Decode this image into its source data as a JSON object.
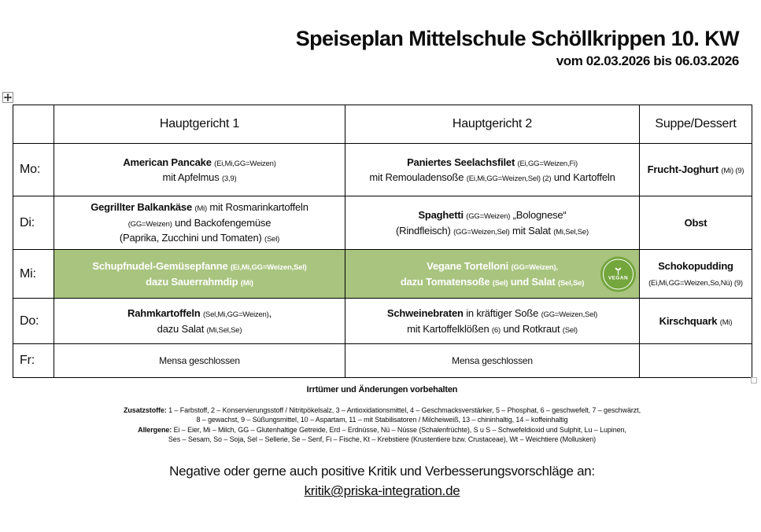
{
  "page": {
    "title": "Speiseplan Mittelschule Schöllkrippen 10. KW",
    "subtitle": "vom 02.03.2026 bis 06.03.2026"
  },
  "colors": {
    "highlight_green": "#a9c47f",
    "badge_green": "#74a63e",
    "border_black": "#000000"
  },
  "table": {
    "headers": [
      "",
      "Hauptgericht 1",
      "Hauptgericht 2",
      "Suppe/Dessert"
    ],
    "rows": [
      {
        "day": "Mo:",
        "cells": [
          {
            "hl": false,
            "lines": [
              [
                {
                  "t": "American Pancake ",
                  "s": "b"
                },
                {
                  "t": "(Ei,Mi,GG=Weizen)",
                  "s": "s"
                }
              ],
              [
                {
                  "t": "mit Apfelmus ",
                  "s": "r"
                },
                {
                  "t": "(3,9)",
                  "s": "s"
                }
              ]
            ]
          },
          {
            "hl": false,
            "lines": [
              [
                {
                  "t": "Paniertes Seelachsfilet ",
                  "s": "b"
                },
                {
                  "t": "(Ei,GG=Weizen,Fi)",
                  "s": "s"
                }
              ],
              [
                {
                  "t": "mit Remouladensoße ",
                  "s": "r"
                },
                {
                  "t": "(Ei,Mi,GG=Weizen,Sel) (2)",
                  "s": "s"
                },
                {
                  "t": " und Kartoffeln",
                  "s": "r"
                }
              ]
            ]
          },
          {
            "hl": false,
            "lines": [
              [
                {
                  "t": "Frucht-Joghurt ",
                  "s": "b"
                },
                {
                  "t": "(Mi) (9)",
                  "s": "s"
                }
              ]
            ]
          }
        ]
      },
      {
        "day": "Di:",
        "cells": [
          {
            "hl": false,
            "lines": [
              [
                {
                  "t": "Gegrillter Balkankäse ",
                  "s": "b"
                },
                {
                  "t": "(Mi)",
                  "s": "s"
                },
                {
                  "t": " mit Rosmarinkartoffeln",
                  "s": "r"
                }
              ],
              [
                {
                  "t": "(GG=Weizen)",
                  "s": "s"
                },
                {
                  "t": " und Backofengemüse",
                  "s": "r"
                }
              ],
              [
                {
                  "t": "(Paprika, Zucchini und Tomaten) ",
                  "s": "r"
                },
                {
                  "t": "(Sel)",
                  "s": "s"
                }
              ]
            ]
          },
          {
            "hl": false,
            "lines": [
              [
                {
                  "t": "Spaghetti ",
                  "s": "b"
                },
                {
                  "t": "(GG=Weizen)",
                  "s": "s"
                },
                {
                  "t": " „Bolognese“",
                  "s": "r"
                }
              ],
              [
                {
                  "t": "(Rindfleisch) ",
                  "s": "r"
                },
                {
                  "t": "(GG=Weizen,Sel)",
                  "s": "s"
                },
                {
                  "t": " mit Salat ",
                  "s": "r"
                },
                {
                  "t": "(Mi,Sel,Se)",
                  "s": "s"
                }
              ]
            ]
          },
          {
            "hl": false,
            "lines": [
              [
                {
                  "t": "Obst",
                  "s": "b"
                }
              ]
            ]
          }
        ]
      },
      {
        "day": "Mi:",
        "cells": [
          {
            "hl": true,
            "lines": [
              [
                {
                  "t": "Schupfnudel-Gemüsepfanne ",
                  "s": "b"
                },
                {
                  "t": "(Ei,Mi,GG=Weizen,Sel)",
                  "s": "s"
                }
              ],
              [
                {
                  "t": "dazu Sauerrahmdip ",
                  "s": "b"
                },
                {
                  "t": "(Mi)",
                  "s": "s"
                }
              ]
            ]
          },
          {
            "hl": true,
            "badge": "vegan",
            "lines": [
              [
                {
                  "t": "Vegane Tortelloni ",
                  "s": "b"
                },
                {
                  "t": "(GG=Weizen),",
                  "s": "s"
                }
              ],
              [
                {
                  "t": "dazu Tomatensoße ",
                  "s": "b"
                },
                {
                  "t": "(Sel)",
                  "s": "s"
                },
                {
                  "t": " und Salat ",
                  "s": "b"
                },
                {
                  "t": "(Sel,Se)",
                  "s": "s"
                }
              ]
            ]
          },
          {
            "hl": false,
            "lines": [
              [
                {
                  "t": "Schokopudding",
                  "s": "b"
                }
              ],
              [
                {
                  "t": "(Ei,Mi,GG=Weizen,So,Nü) (9)",
                  "s": "s"
                }
              ]
            ]
          }
        ]
      },
      {
        "day": "Do:",
        "cells": [
          {
            "hl": false,
            "lines": [
              [
                {
                  "t": "Rahmkartoffeln ",
                  "s": "b"
                },
                {
                  "t": "(Sel,Mi,GG=Weizen)",
                  "s": "s"
                },
                {
                  "t": ",",
                  "s": "r"
                }
              ],
              [
                {
                  "t": "dazu Salat ",
                  "s": "r"
                },
                {
                  "t": "(Mi,Sel,Se)",
                  "s": "s"
                }
              ]
            ]
          },
          {
            "hl": false,
            "lines": [
              [
                {
                  "t": "Schweinebraten",
                  "s": "b"
                },
                {
                  "t": " in kräftiger Soße ",
                  "s": "r"
                },
                {
                  "t": "(GG=Weizen,Sel)",
                  "s": "s"
                }
              ],
              [
                {
                  "t": "mit Kartoffelklößen ",
                  "s": "r"
                },
                {
                  "t": "(6)",
                  "s": "s"
                },
                {
                  "t": " und Rotkraut ",
                  "s": "r"
                },
                {
                  "t": "(Sel)",
                  "s": "s"
                }
              ]
            ]
          },
          {
            "hl": false,
            "lines": [
              [
                {
                  "t": "Kirschquark ",
                  "s": "b"
                },
                {
                  "t": "(Mi)",
                  "s": "s"
                }
              ]
            ]
          }
        ]
      },
      {
        "day": "Fr:",
        "cells": [
          {
            "hl": false,
            "lines": [
              [
                {
                  "t": "Mensa geschlossen",
                  "s": "r"
                }
              ]
            ]
          },
          {
            "hl": false,
            "lines": [
              [
                {
                  "t": "Mensa geschlossen",
                  "s": "r"
                }
              ]
            ]
          },
          {
            "hl": false,
            "lines": []
          }
        ]
      }
    ]
  },
  "badge": {
    "label": "VEGAN"
  },
  "footer": {
    "disclaimer": "Irrtümer und Änderungen vorbehalten",
    "fineprint_lines": [
      [
        {
          "t": "Zusatzstoffe:",
          "s": "b"
        },
        {
          "t": " 1 – Farbstoff, 2 – Konservierungsstoff / Nitritpökelsalz, 3 – Antioxidationsmittel, 4 – Geschmacksverstärker, 5 – Phosphat, 6 – geschwefelt, 7 – geschwärzt,",
          "s": "r"
        }
      ],
      [
        {
          "t": "8 – gewachst, 9 – Süßungsmittel, 10 – Aspartam, 11 – mit Stabilisatoren / Milcheiweiß, 13 – chininhaltig, 14 – koffeinhaltig",
          "s": "r"
        }
      ],
      [
        {
          "t": "Allergene:",
          "s": "b"
        },
        {
          "t": " Ei – Eier, Mi – Milch, GG – Glutenhaltige Getreide, Erd – Erdnüsse, Nü – Nüsse (Schalenfrüchte), S u S – Schwefeldioxid und Sulphit, Lu – Lupinen,",
          "s": "r"
        }
      ],
      [
        {
          "t": "Ses – Sesam, So – Soja, Sel – Sellerie, Se – Senf, Fi – Fische, Kt – Krebstiere (Krustentiere bzw. Crustaceae), Wt – Weichtiere (Mollusken)",
          "s": "r"
        }
      ]
    ],
    "feedback": "Negative oder gerne auch positive Kritik und Verbesserungsvorschläge an:",
    "email": "kritik@priska-integration.de"
  }
}
